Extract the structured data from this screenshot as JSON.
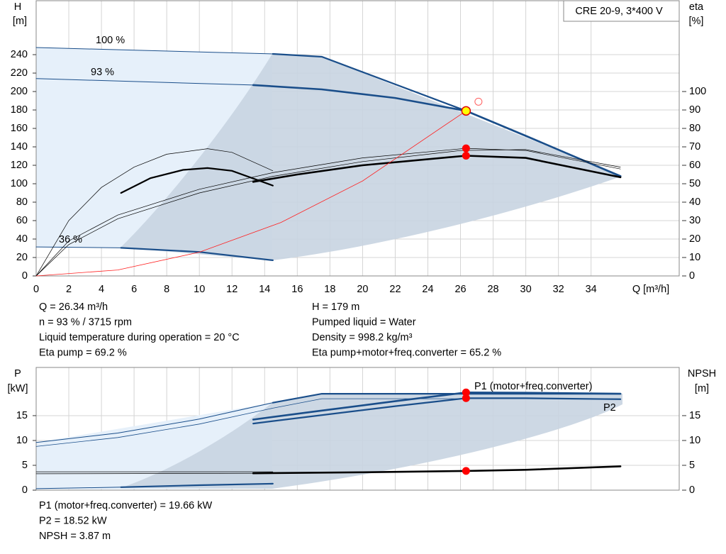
{
  "chart_data": [
    {
      "type": "line",
      "title": "CRE 20-9, 3*400 V",
      "ylabel": [
        "H",
        "[m]"
      ],
      "y2label": [
        "eta",
        "[%]"
      ],
      "xlabel": "Q [m³/h]",
      "xlim": [
        0,
        39.4
      ],
      "xticks": [
        0,
        2,
        4,
        6,
        8,
        10,
        12,
        14,
        16,
        18,
        20,
        22,
        24,
        26,
        28,
        30,
        32,
        34
      ],
      "ylim": [
        0,
        298.5
      ],
      "yticks": [
        0,
        20,
        40,
        60,
        80,
        100,
        120,
        140,
        160,
        180,
        200,
        220,
        240
      ],
      "y2lim": [
        0,
        149.25
      ],
      "y2ticks": [
        0,
        10,
        20,
        30,
        40,
        50,
        60,
        70,
        80,
        90,
        100
      ],
      "grid": true,
      "series": [
        {
          "name": "100 %",
          "color": "#1a4e8a",
          "width": 1,
          "x": [
            0,
            14.5
          ],
          "values": [
            247.7,
            240.8
          ]
        },
        {
          "color": "#1a4e8a",
          "width": 2.2,
          "x": [
            14.5,
            17.5,
            26.34,
            35.8
          ],
          "values": [
            240.8,
            237.7,
            179,
            108.5
          ]
        },
        {
          "name": "93 %",
          "color": "#1a4e8a",
          "width": 1,
          "x": [
            0,
            13.3
          ],
          "values": [
            214,
            207
          ]
        },
        {
          "color": "#1a4e8a",
          "width": 2.6,
          "x": [
            13.3,
            17.5,
            22,
            26.34,
            30,
            35.8
          ],
          "values": [
            207,
            202.3,
            193,
            179,
            152,
            108
          ]
        },
        {
          "name": "36 %",
          "color": "#1a4e8a",
          "width": 1,
          "x": [
            0,
            5.2
          ],
          "values": [
            31.5,
            30.5
          ]
        },
        {
          "color": "#1a4e8a",
          "width": 2.2,
          "x": [
            5.2,
            10,
            14.5
          ],
          "values": [
            30.5,
            26,
            17
          ]
        },
        {
          "color": "#000000",
          "width": 0.7,
          "axis": "y2",
          "x": [
            0,
            2,
            4,
            6,
            8,
            10.5,
            12,
            14.5
          ],
          "values": [
            0,
            30,
            48,
            59,
            66,
            69,
            67,
            57
          ]
        },
        {
          "color": "#000000",
          "width": 2.2,
          "axis": "y2",
          "x": [
            5.2,
            7,
            9,
            10.5,
            12,
            14.5
          ],
          "values": [
            45,
            53,
            57.5,
            58.5,
            57,
            49
          ]
        },
        {
          "color": "#000000",
          "width": 0.7,
          "axis": "y2",
          "x": [
            0,
            2,
            5,
            10,
            14.5,
            20,
            26.34,
            30,
            35.8
          ],
          "values": [
            0,
            19,
            33,
            47,
            56,
            64,
            69.2,
            68,
            58
          ]
        },
        {
          "color": "#000000",
          "width": 2.6,
          "axis": "y2",
          "x": [
            13.3,
            16,
            20,
            26.34,
            30,
            35.8
          ],
          "values": [
            51,
            55,
            60,
            65.2,
            64,
            53.5
          ]
        },
        {
          "color": "#000000",
          "width": 0.7,
          "axis": "y2",
          "x": [
            0,
            2,
            5,
            10,
            14.5,
            20,
            26,
            30,
            35.8
          ],
          "values": [
            0,
            17,
            31,
            45,
            54,
            62,
            68,
            68.5,
            59
          ]
        },
        {
          "color": "#ff2020",
          "width": 0.8,
          "x": [
            0,
            5,
            10,
            15,
            20,
            26.34
          ],
          "values": [
            0,
            6.45,
            25.8,
            58,
            103,
            179
          ]
        }
      ],
      "points": [
        {
          "x": 26.34,
          "y": 69.2,
          "axis": "y2",
          "color": "#ff0000",
          "fill": "#ff0000"
        },
        {
          "x": 26.34,
          "y": 65.2,
          "axis": "y2",
          "color": "#ff0000",
          "fill": "#ff0000"
        },
        {
          "x": 26.34,
          "y": 179,
          "color": "#e00000",
          "fill": "#ffff00"
        },
        {
          "x": 27.1,
          "y": 189,
          "color": "#ff6060",
          "fill": "none"
        }
      ],
      "info": [
        [
          "Q = 26.34 m³/h",
          "n = 93 % / 3715 rpm",
          "Liquid temperature during operation = 20 °C",
          "Eta pump = 69.2 %"
        ],
        [
          "H = 179 m",
          "Pumped liquid = Water",
          "Density = 998.2 kg/m³",
          "Eta pump+motor+freq.converter = 65.2 %"
        ]
      ]
    },
    {
      "type": "line",
      "ylabel": [
        "P",
        "[kW]"
      ],
      "y2label": [
        "NPSH",
        "[m]"
      ],
      "xlim": [
        0,
        39.4
      ],
      "ylim": [
        0,
        24.7
      ],
      "yticks": [
        0,
        5,
        10,
        15
      ],
      "y2lim": [
        0,
        24.7
      ],
      "y2ticks": [
        0,
        5,
        10,
        15
      ],
      "grid": true,
      "series": [
        {
          "color": "#1a4e8a",
          "width": 1,
          "x": [
            0,
            5,
            10,
            14.5
          ],
          "values": [
            9.6,
            11.5,
            14.3,
            17.6
          ]
        },
        {
          "color": "#1a4e8a",
          "width": 2.2,
          "x": [
            14.5,
            17.5,
            35.8
          ],
          "values": [
            17.6,
            19.4,
            19.4
          ]
        },
        {
          "color": "#1a4e8a",
          "width": 0.8,
          "x": [
            0,
            5,
            10,
            14.5,
            17.5,
            35.8
          ],
          "values": [
            8.8,
            10.6,
            13.3,
            16.5,
            18.4,
            18.4
          ]
        },
        {
          "name": "P1 (motor+freq.converter)",
          "color": "#1a4e8a",
          "width": 2.6,
          "x": [
            13.3,
            17,
            22,
            26.34,
            30,
            35.8
          ],
          "values": [
            14.2,
            15.8,
            17.9,
            19.66,
            19.6,
            19.4
          ]
        },
        {
          "name": "P2",
          "color": "#1a4e8a",
          "width": 2.2,
          "x": [
            13.3,
            17,
            22,
            26.34,
            30,
            35.8
          ],
          "values": [
            13.4,
            14.9,
            16.9,
            18.52,
            18.5,
            18.3
          ]
        },
        {
          "color": "#1a4e8a",
          "width": 1,
          "x": [
            0,
            5.2
          ],
          "values": [
            0.3,
            0.6
          ]
        },
        {
          "color": "#1a4e8a",
          "width": 2.2,
          "x": [
            5.2,
            10,
            14.5
          ],
          "values": [
            0.6,
            1.0,
            1.3
          ]
        },
        {
          "color": "#000000",
          "width": 0.7,
          "axis": "y2",
          "x": [
            0,
            14.5
          ],
          "values": [
            3.7,
            3.7
          ]
        },
        {
          "color": "#000000",
          "width": 0.7,
          "axis": "y2",
          "x": [
            0,
            14.5
          ],
          "values": [
            3.3,
            3.4
          ]
        },
        {
          "color": "#000000",
          "width": 2.6,
          "axis": "y2",
          "x": [
            13.3,
            20,
            26.34,
            30,
            35.8
          ],
          "values": [
            3.4,
            3.6,
            3.87,
            4.1,
            4.8
          ]
        }
      ],
      "points": [
        {
          "x": 26.34,
          "y": 19.66,
          "color": "#ff0000",
          "fill": "#ff0000"
        },
        {
          "x": 26.34,
          "y": 18.52,
          "color": "#ff0000",
          "fill": "#ff0000"
        },
        {
          "x": 26.34,
          "y": 3.87,
          "axis": "y2",
          "color": "#ff0000",
          "fill": "#ff0000"
        }
      ],
      "info": [
        [
          "P1 (motor+freq.converter) = 19.66 kW",
          "P2 = 18.52 kW",
          "NPSH = 3.87 m"
        ]
      ]
    }
  ]
}
